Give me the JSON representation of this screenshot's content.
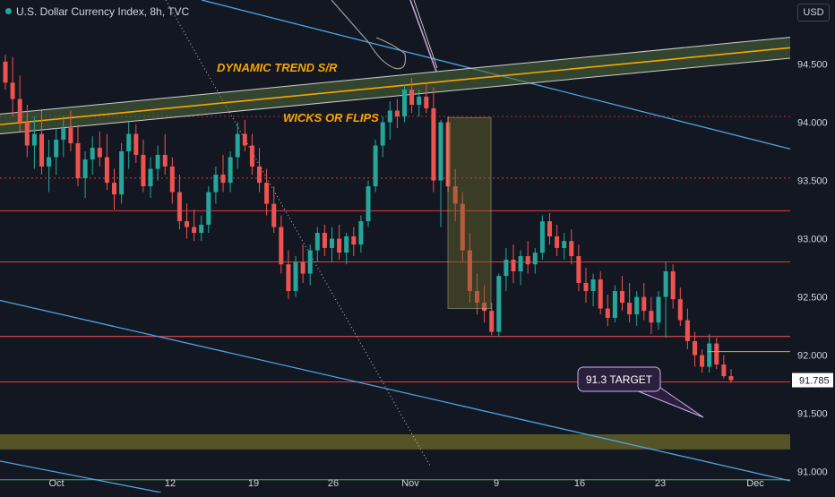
{
  "header": {
    "title": "U.S. Dollar Currency Index, 8h, TVC",
    "currency": "USD"
  },
  "colors": {
    "background": "#131722",
    "up": "#26a69a",
    "down": "#ef5350",
    "text": "#d1d4dc",
    "annotation": "#f7a600",
    "trendline": "#4fa3e0",
    "support": "#e53935",
    "zone": "#6b6a2a",
    "green_line": "#4caf50"
  },
  "chart_data": {
    "type": "candlestick",
    "title": "U.S. Dollar Currency Index, 8h, TVC",
    "ylim": [
      90.82,
      95.05
    ],
    "x_ticks": [
      "Oct",
      "12",
      "19",
      "26",
      "Nov",
      "9",
      "16",
      "23",
      "Dec"
    ],
    "y_ticks": [
      91.0,
      91.5,
      92.0,
      92.5,
      93.0,
      93.5,
      94.0,
      94.5
    ],
    "last_price": 91.785,
    "candles": [
      [
        94.52,
        94.58,
        94.28,
        94.34
      ],
      [
        94.34,
        94.56,
        94.05,
        94.2
      ],
      [
        94.2,
        94.4,
        93.92,
        94.0
      ],
      [
        94.0,
        94.15,
        93.7,
        93.8
      ],
      [
        93.8,
        94.05,
        93.6,
        93.9
      ],
      [
        93.9,
        94.1,
        93.55,
        93.62
      ],
      [
        93.62,
        93.85,
        93.4,
        93.7
      ],
      [
        93.7,
        93.95,
        93.55,
        93.85
      ],
      [
        93.85,
        94.05,
        93.7,
        93.95
      ],
      [
        93.95,
        94.1,
        93.75,
        93.82
      ],
      [
        93.82,
        93.98,
        93.45,
        93.52
      ],
      [
        93.52,
        93.75,
        93.35,
        93.68
      ],
      [
        93.68,
        93.88,
        93.55,
        93.78
      ],
      [
        93.78,
        93.92,
        93.62,
        93.7
      ],
      [
        93.7,
        93.9,
        93.42,
        93.48
      ],
      [
        93.48,
        93.6,
        93.25,
        93.38
      ],
      [
        93.38,
        93.82,
        93.3,
        93.75
      ],
      [
        93.75,
        94.0,
        93.6,
        93.9
      ],
      [
        93.9,
        93.98,
        93.65,
        93.72
      ],
      [
        93.72,
        93.85,
        93.4,
        93.45
      ],
      [
        93.45,
        93.7,
        93.35,
        93.6
      ],
      [
        93.6,
        93.8,
        93.5,
        93.72
      ],
      [
        93.72,
        93.9,
        93.55,
        93.62
      ],
      [
        93.62,
        93.7,
        93.3,
        93.4
      ],
      [
        93.4,
        93.55,
        93.08,
        93.15
      ],
      [
        93.15,
        93.3,
        93.0,
        93.1
      ],
      [
        93.1,
        93.25,
        92.98,
        93.05
      ],
      [
        93.05,
        93.2,
        92.98,
        93.12
      ],
      [
        93.12,
        93.45,
        93.05,
        93.4
      ],
      [
        93.4,
        93.62,
        93.3,
        93.55
      ],
      [
        93.55,
        93.72,
        93.4,
        93.48
      ],
      [
        93.48,
        93.75,
        93.4,
        93.7
      ],
      [
        93.7,
        94.0,
        93.6,
        93.9
      ],
      [
        93.9,
        94.02,
        93.75,
        93.8
      ],
      [
        93.8,
        93.9,
        93.55,
        93.62
      ],
      [
        93.62,
        93.78,
        93.4,
        93.48
      ],
      [
        93.48,
        93.6,
        93.2,
        93.3
      ],
      [
        93.3,
        93.45,
        93.05,
        93.1
      ],
      [
        93.1,
        93.2,
        92.7,
        92.78
      ],
      [
        92.78,
        92.9,
        92.48,
        92.55
      ],
      [
        92.55,
        92.85,
        92.5,
        92.8
      ],
      [
        92.8,
        92.95,
        92.62,
        92.7
      ],
      [
        92.7,
        92.95,
        92.6,
        92.9
      ],
      [
        92.9,
        93.1,
        92.8,
        93.05
      ],
      [
        93.05,
        93.12,
        92.85,
        92.92
      ],
      [
        92.92,
        93.1,
        92.8,
        93.0
      ],
      [
        93.0,
        93.12,
        92.82,
        92.88
      ],
      [
        92.88,
        93.05,
        92.78,
        93.02
      ],
      [
        93.02,
        93.1,
        92.85,
        92.95
      ],
      [
        92.95,
        93.2,
        92.88,
        93.15
      ],
      [
        93.15,
        93.5,
        93.1,
        93.45
      ],
      [
        93.45,
        93.85,
        93.4,
        93.8
      ],
      [
        93.8,
        94.05,
        93.7,
        94.0
      ],
      [
        94.0,
        94.18,
        93.85,
        94.1
      ],
      [
        94.1,
        94.2,
        93.95,
        94.05
      ],
      [
        94.05,
        94.32,
        94.0,
        94.28
      ],
      [
        94.28,
        94.38,
        94.08,
        94.15
      ],
      [
        94.15,
        94.28,
        94.05,
        94.22
      ],
      [
        94.22,
        94.34,
        94.08,
        94.12
      ],
      [
        94.12,
        94.3,
        93.4,
        93.5
      ],
      [
        93.5,
        94.02,
        93.1,
        94.0
      ],
      [
        94.0,
        94.05,
        93.4,
        93.45
      ],
      [
        93.45,
        93.6,
        93.15,
        93.3
      ],
      [
        93.3,
        93.4,
        92.8,
        92.9
      ],
      [
        92.9,
        93.05,
        92.45,
        92.55
      ],
      [
        92.55,
        92.7,
        92.35,
        92.45
      ],
      [
        92.45,
        92.6,
        92.28,
        92.38
      ],
      [
        92.38,
        92.45,
        92.17,
        92.2
      ],
      [
        92.2,
        92.7,
        92.16,
        92.68
      ],
      [
        92.68,
        92.92,
        92.55,
        92.82
      ],
      [
        92.82,
        92.95,
        92.62,
        92.72
      ],
      [
        92.72,
        92.9,
        92.6,
        92.85
      ],
      [
        92.85,
        92.98,
        92.7,
        92.78
      ],
      [
        92.78,
        92.92,
        92.7,
        92.88
      ],
      [
        92.88,
        93.2,
        92.82,
        93.15
      ],
      [
        93.15,
        93.22,
        92.95,
        93.02
      ],
      [
        93.02,
        93.12,
        92.85,
        92.92
      ],
      [
        92.92,
        93.05,
        92.82,
        92.98
      ],
      [
        92.98,
        93.08,
        92.78,
        92.85
      ],
      [
        92.85,
        92.95,
        92.55,
        92.62
      ],
      [
        92.62,
        92.75,
        92.45,
        92.55
      ],
      [
        92.55,
        92.7,
        92.42,
        92.65
      ],
      [
        92.65,
        92.72,
        92.35,
        92.4
      ],
      [
        92.4,
        92.52,
        92.25,
        92.32
      ],
      [
        92.32,
        92.6,
        92.28,
        92.55
      ],
      [
        92.55,
        92.68,
        92.38,
        92.45
      ],
      [
        92.45,
        92.62,
        92.28,
        92.35
      ],
      [
        92.35,
        92.55,
        92.25,
        92.5
      ],
      [
        92.5,
        92.62,
        92.3,
        92.38
      ],
      [
        92.38,
        92.5,
        92.18,
        92.28
      ],
      [
        92.28,
        92.55,
        92.22,
        92.5
      ],
      [
        92.5,
        92.8,
        92.15,
        92.72
      ],
      [
        92.72,
        92.78,
        92.4,
        92.48
      ],
      [
        92.48,
        92.58,
        92.25,
        92.3
      ],
      [
        92.3,
        92.4,
        92.05,
        92.12
      ],
      [
        92.12,
        92.2,
        91.9,
        92.0
      ],
      [
        92.0,
        92.05,
        91.85,
        91.9
      ],
      [
        91.9,
        92.18,
        91.85,
        92.1
      ],
      [
        92.1,
        92.15,
        91.88,
        91.92
      ],
      [
        91.92,
        92.0,
        91.8,
        91.82
      ],
      [
        91.82,
        91.88,
        91.76,
        91.785
      ]
    ],
    "horizontal_levels": [
      {
        "price": 94.05,
        "style": "dotted",
        "color": "#b22833"
      },
      {
        "price": 93.52,
        "style": "dotted",
        "color": "#e53935"
      },
      {
        "price": 93.24,
        "style": "solid",
        "color": "#e53935"
      },
      {
        "price": 92.8,
        "style": "solid",
        "color": "#e53935"
      },
      {
        "price": 92.16,
        "style": "solid",
        "color": "#ff5252"
      },
      {
        "price": 91.77,
        "style": "solid",
        "color": "#e53935"
      },
      {
        "price": 90.93,
        "style": "solid",
        "color": "#4caf50"
      }
    ],
    "target_zone": {
      "from": 91.19,
      "to": 91.32
    },
    "annotations": {
      "trend_label": "DYNAMIC TREND S/R",
      "wick_label": "WICKS OR FLIPS",
      "target_label": "91.3 TARGET"
    }
  }
}
